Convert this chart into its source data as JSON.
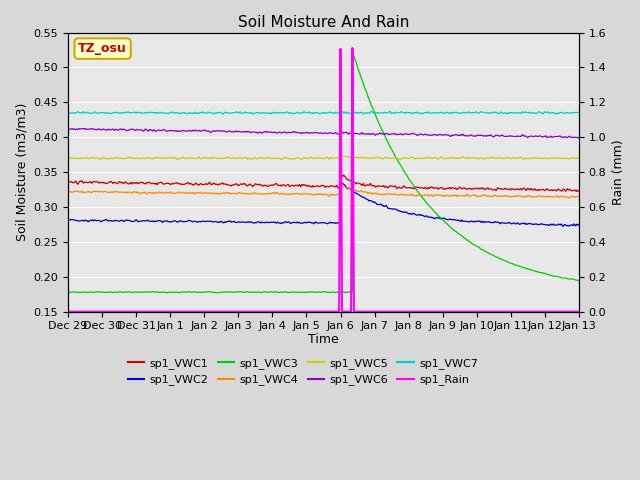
{
  "title": "Soil Moisture And Rain",
  "xlabel": "Time",
  "ylabel_left": "Soil Moisture (m3/m3)",
  "ylabel_right": "Rain (mm)",
  "ylim_left": [
    0.15,
    0.55
  ],
  "ylim_right": [
    0.0,
    1.6
  ],
  "yticks_left": [
    0.15,
    0.2,
    0.25,
    0.3,
    0.35,
    0.4,
    0.45,
    0.5,
    0.55
  ],
  "yticks_right": [
    0.0,
    0.2,
    0.4,
    0.6,
    0.8,
    1.0,
    1.2,
    1.4,
    1.6
  ],
  "num_days": 15,
  "rain_spike_day1": 8.0,
  "rain_spike_day2": 8.35,
  "annotation_label": "TZ_osu",
  "annotation_color": "#cc0000",
  "annotation_bg": "#ffffcc",
  "annotation_border": "#ccaa00",
  "series": {
    "sp1_VWC1": {
      "color": "#cc0000",
      "baseline": 0.336,
      "slope": -0.0008,
      "spike_day": 8.0,
      "spike_amount": 0.018,
      "spike_decay": 0.4,
      "noise": 0.003
    },
    "sp1_VWC2": {
      "color": "#0000cc",
      "baseline": 0.281,
      "slope": -0.0005,
      "spike_day": 8.0,
      "spike_amount": 0.058,
      "spike_decay": 1.5,
      "noise": 0.002
    },
    "sp1_VWC3": {
      "color": "#00cc00",
      "baseline": 0.178,
      "slope": 0.0,
      "spike_day": 8.35,
      "spike_amount": 0.345,
      "spike_decay": 2.2,
      "noise": 0.001
    },
    "sp1_VWC4": {
      "color": "#ff8800",
      "baseline": 0.322,
      "slope": -0.0005,
      "spike_day": 8.0,
      "spike_amount": 0.014,
      "spike_decay": 0.5,
      "noise": 0.002
    },
    "sp1_VWC5": {
      "color": "#cccc00",
      "baseline": 0.37,
      "slope": 0.0,
      "spike_day": 8.0,
      "spike_amount": 0.004,
      "spike_decay": 0.3,
      "noise": 0.002
    },
    "sp1_VWC6": {
      "color": "#8800cc",
      "baseline": 0.412,
      "slope": -0.0008,
      "spike_day": 8.0,
      "spike_amount": 0.002,
      "spike_decay": 0.2,
      "noise": 0.002
    },
    "sp1_VWC7": {
      "color": "#00cccc",
      "baseline": 0.435,
      "slope": 0.0,
      "spike_day": 8.0,
      "spike_amount": 0.001,
      "spike_decay": 0.1,
      "noise": 0.002
    }
  },
  "bg_color": "#e8e8e8",
  "grid_color": "#ffffff",
  "xtick_labels": [
    "Dec 29",
    "Dec 30",
    "Dec 31",
    "Jan 1",
    "Jan 2",
    "Jan 3",
    "Jan 4",
    "Jan 5",
    "Jan 6",
    "Jan 7",
    "Jan 8",
    "Jan 9",
    "Jan 10",
    "Jan 11",
    "Jan 12",
    "Jan 13"
  ]
}
